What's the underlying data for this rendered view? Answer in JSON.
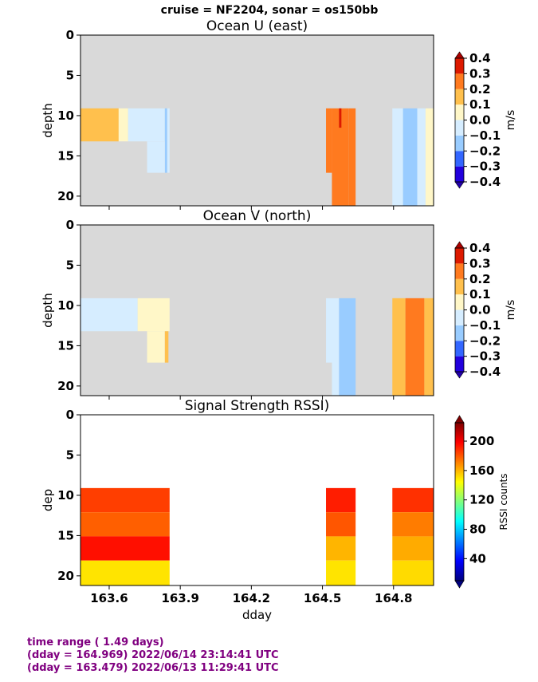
{
  "suptitle": "cruise = NF2204,  sonar = os150bb",
  "colors": {
    "nodata": "#d9d9d9",
    "footer": "#800080"
  },
  "footer": {
    "line1": "time range ( 1.49 days)",
    "line2": "(dday = 164.969) 2022/06/14 23:14:41 UTC",
    "line3": "(dday = 163.479) 2022/06/13 11:29:41 UTC"
  },
  "chart_data": [
    {
      "type": "heatmap",
      "title": "Ocean U (east)",
      "xlabel": "",
      "ylabel": "depth",
      "xlim": [
        163.479,
        164.969
      ],
      "ylim": [
        21.2,
        0
      ],
      "xticks": [
        163.6,
        163.9,
        164.2,
        164.5,
        164.8
      ],
      "xticklabels": [],
      "yticks": [
        0,
        5,
        10,
        15,
        20
      ],
      "yticklabels": [
        "0",
        "5",
        "10",
        "15",
        "20"
      ],
      "nodata_color": "#d9d9d9",
      "colorbar": {
        "label": "m/s",
        "ticks": [
          0.4,
          0.3,
          0.2,
          0.1,
          0.0,
          -0.1,
          -0.2,
          -0.3,
          -0.4
        ],
        "ticklabels": [
          "0.4",
          "0.3",
          "0.2",
          "0.1",
          "0.0",
          "−0.1",
          "−0.2",
          "−0.3",
          "−0.4"
        ],
        "levels": [
          "#2200dd",
          "#3366ff",
          "#99ccff",
          "#d6edff",
          "#fff7c8",
          "#ffc04d",
          "#ff7a1f",
          "#dd1a00"
        ]
      },
      "regions": [
        {
          "x": [
            163.479,
            163.64
          ],
          "y": [
            9.1,
            13.2
          ],
          "value": 0.15
        },
        {
          "x": [
            163.64,
            163.68
          ],
          "y": [
            9.1,
            13.2
          ],
          "value": 0.05
        },
        {
          "x": [
            163.68,
            163.835
          ],
          "y": [
            9.1,
            13.2
          ],
          "value": -0.05
        },
        {
          "x": [
            163.835,
            163.845
          ],
          "y": [
            9.1,
            17.1
          ],
          "value": -0.15
        },
        {
          "x": [
            163.845,
            163.855
          ],
          "y": [
            9.1,
            17.1
          ],
          "value": -0.05
        },
        {
          "x": [
            163.76,
            163.835
          ],
          "y": [
            13.2,
            17.1
          ],
          "value": -0.05
        },
        {
          "x": [
            164.515,
            164.54
          ],
          "y": [
            9.1,
            17.1
          ],
          "value": 0.25
        },
        {
          "x": [
            164.54,
            164.61
          ],
          "y": [
            9.1,
            21.2
          ],
          "value": 0.25
        },
        {
          "x": [
            164.57,
            164.58
          ],
          "y": [
            9.1,
            11.5
          ],
          "value": 0.35
        },
        {
          "x": [
            164.61,
            164.64
          ],
          "y": [
            9.1,
            21.2
          ],
          "value": 0.25
        },
        {
          "x": [
            164.795,
            164.84
          ],
          "y": [
            9.1,
            21.2
          ],
          "value": -0.05
        },
        {
          "x": [
            164.84,
            164.9
          ],
          "y": [
            9.1,
            21.2
          ],
          "value": -0.15
        },
        {
          "x": [
            164.9,
            164.935
          ],
          "y": [
            9.1,
            21.2
          ],
          "value": -0.05
        },
        {
          "x": [
            164.935,
            164.969
          ],
          "y": [
            9.1,
            21.2
          ],
          "value": 0.05
        }
      ]
    },
    {
      "type": "heatmap",
      "title": "Ocean V (north)",
      "xlabel": "",
      "ylabel": "depth",
      "xlim": [
        163.479,
        164.969
      ],
      "ylim": [
        21.2,
        0
      ],
      "xticks": [
        163.6,
        163.9,
        164.2,
        164.5,
        164.8
      ],
      "xticklabels": [],
      "yticks": [
        0,
        5,
        10,
        15,
        20
      ],
      "yticklabels": [
        "0",
        "5",
        "10",
        "15",
        "20"
      ],
      "nodata_color": "#d9d9d9",
      "colorbar": {
        "label": "m/s",
        "ticks": [
          0.4,
          0.3,
          0.2,
          0.1,
          0.0,
          -0.1,
          -0.2,
          -0.3,
          -0.4
        ],
        "ticklabels": [
          "0.4",
          "0.3",
          "0.2",
          "0.1",
          "0.0",
          "−0.1",
          "−0.2",
          "−0.3",
          "−0.4"
        ],
        "levels": [
          "#2200dd",
          "#3366ff",
          "#99ccff",
          "#d6edff",
          "#fff7c8",
          "#ffc04d",
          "#ff7a1f",
          "#dd1a00"
        ]
      },
      "regions": [
        {
          "x": [
            163.479,
            163.72
          ],
          "y": [
            9.1,
            13.2
          ],
          "value": -0.05
        },
        {
          "x": [
            163.72,
            163.855
          ],
          "y": [
            9.1,
            13.2
          ],
          "value": 0.05
        },
        {
          "x": [
            163.76,
            163.835
          ],
          "y": [
            13.2,
            17.1
          ],
          "value": 0.05
        },
        {
          "x": [
            163.835,
            163.85
          ],
          "y": [
            13.2,
            17.1
          ],
          "value": 0.15
        },
        {
          "x": [
            164.515,
            164.54
          ],
          "y": [
            9.1,
            17.1
          ],
          "value": -0.05
        },
        {
          "x": [
            164.54,
            164.57
          ],
          "y": [
            9.1,
            21.2
          ],
          "value": -0.05
        },
        {
          "x": [
            164.57,
            164.64
          ],
          "y": [
            9.1,
            21.2
          ],
          "value": -0.15
        },
        {
          "x": [
            164.795,
            164.85
          ],
          "y": [
            9.1,
            21.2
          ],
          "value": 0.15
        },
        {
          "x": [
            164.85,
            164.93
          ],
          "y": [
            9.1,
            21.2
          ],
          "value": 0.25
        },
        {
          "x": [
            164.93,
            164.969
          ],
          "y": [
            9.1,
            21.2
          ],
          "value": 0.15
        }
      ]
    },
    {
      "type": "heatmap",
      "title": "Signal Strength RSSI)",
      "xlabel": "dday",
      "ylabel": "dep",
      "xlim": [
        163.479,
        164.969
      ],
      "ylim": [
        21.2,
        0
      ],
      "xticks": [
        163.6,
        163.9,
        164.2,
        164.5,
        164.8
      ],
      "xticklabels": [
        "163.6",
        "163.9",
        "164.2",
        "164.5",
        "164.8"
      ],
      "yticks": [
        0,
        5,
        10,
        15,
        20
      ],
      "yticklabels": [
        "0",
        "5",
        "10",
        "15",
        "20"
      ],
      "nodata_color": "#ffffff",
      "colorbar": {
        "label": "RSSI counts",
        "range": [
          10,
          225
        ],
        "ticks": [
          200,
          160,
          120,
          80,
          40
        ],
        "ticklabels": [
          "200",
          "160",
          "120",
          "80",
          "40"
        ],
        "colormap": "jet"
      },
      "regions": [
        {
          "x": [
            163.479,
            163.855
          ],
          "y": [
            9.1,
            12.1
          ],
          "value": 185
        },
        {
          "x": [
            163.479,
            163.855
          ],
          "y": [
            12.1,
            15.1
          ],
          "value": 178
        },
        {
          "x": [
            163.479,
            163.855
          ],
          "y": [
            15.1,
            18.1
          ],
          "value": 195
        },
        {
          "x": [
            163.479,
            163.855
          ],
          "y": [
            18.1,
            21.2
          ],
          "value": 150
        },
        {
          "x": [
            164.515,
            164.64
          ],
          "y": [
            9.1,
            12.1
          ],
          "value": 192
        },
        {
          "x": [
            164.515,
            164.64
          ],
          "y": [
            12.1,
            15.1
          ],
          "value": 180
        },
        {
          "x": [
            164.515,
            164.64
          ],
          "y": [
            15.1,
            18.1
          ],
          "value": 160
        },
        {
          "x": [
            164.515,
            164.64
          ],
          "y": [
            18.1,
            21.2
          ],
          "value": 150
        },
        {
          "x": [
            164.795,
            164.969
          ],
          "y": [
            9.1,
            12.1
          ],
          "value": 188
        },
        {
          "x": [
            164.795,
            164.969
          ],
          "y": [
            12.1,
            15.1
          ],
          "value": 172
        },
        {
          "x": [
            164.795,
            164.969
          ],
          "y": [
            15.1,
            18.1
          ],
          "value": 162
        },
        {
          "x": [
            164.795,
            164.969
          ],
          "y": [
            18.1,
            21.2
          ],
          "value": 152
        }
      ]
    }
  ]
}
